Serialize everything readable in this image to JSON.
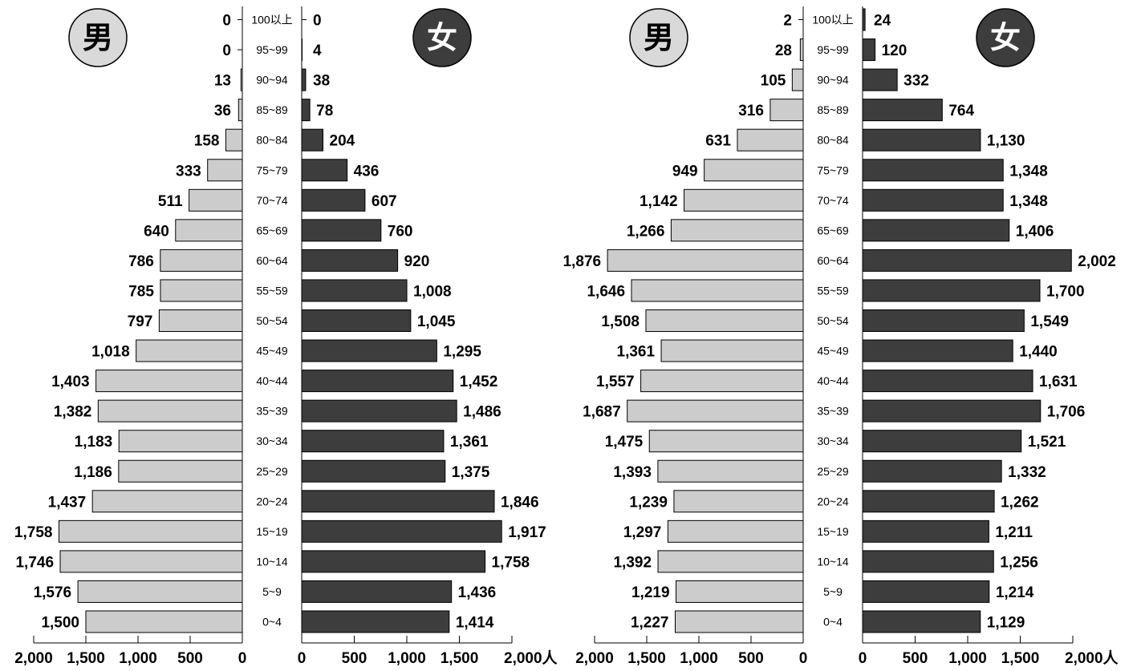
{
  "chart_data": [
    {
      "type": "bar",
      "orientation": "horizontal-pyramid",
      "categories": [
        "100以上",
        "95~99",
        "90~94",
        "85~89",
        "80~84",
        "75~79",
        "70~74",
        "65~69",
        "60~64",
        "55~59",
        "50~54",
        "45~49",
        "40~44",
        "35~39",
        "30~34",
        "25~29",
        "20~24",
        "15~19",
        "10~14",
        "5~9",
        "0~4"
      ],
      "series": [
        {
          "name": "男",
          "values": [
            0,
            0,
            13,
            36,
            158,
            333,
            511,
            640,
            786,
            785,
            797,
            1018,
            1403,
            1382,
            1183,
            1186,
            1437,
            1758,
            1746,
            1576,
            1500
          ],
          "color": "#cccccc"
        },
        {
          "name": "女",
          "values": [
            0,
            4,
            38,
            78,
            204,
            436,
            607,
            760,
            920,
            1008,
            1045,
            1295,
            1452,
            1486,
            1361,
            1375,
            1846,
            1917,
            1758,
            1436,
            1414
          ],
          "color": "#3d3d3d"
        }
      ],
      "xlim": [
        0,
        2000
      ],
      "x_ticks": [
        "2,000",
        "1,500",
        "1,000",
        "500",
        "0"
      ],
      "x_ticks_right": [
        "0",
        "500",
        "1,000",
        "1,500",
        "2,000人"
      ],
      "grid": false
    },
    {
      "type": "bar",
      "orientation": "horizontal-pyramid",
      "categories": [
        "100以上",
        "95~99",
        "90~94",
        "85~89",
        "80~84",
        "75~79",
        "70~74",
        "65~69",
        "60~64",
        "55~59",
        "50~54",
        "45~49",
        "40~44",
        "35~39",
        "30~34",
        "25~29",
        "20~24",
        "15~19",
        "10~14",
        "5~9",
        "0~4"
      ],
      "series": [
        {
          "name": "男",
          "values": [
            2,
            28,
            105,
            316,
            631,
            949,
            1142,
            1266,
            1876,
            1646,
            1508,
            1361,
            1557,
            1687,
            1475,
            1393,
            1239,
            1297,
            1392,
            1219,
            1227
          ],
          "color": "#cccccc"
        },
        {
          "name": "女",
          "values": [
            24,
            120,
            332,
            764,
            1130,
            1348,
            1348,
            1406,
            2002,
            1700,
            1549,
            1440,
            1631,
            1706,
            1521,
            1332,
            1262,
            1211,
            1256,
            1214,
            1129
          ],
          "color": "#3d3d3d"
        }
      ],
      "xlim": [
        0,
        2000
      ],
      "x_ticks": [
        "2,000",
        "1,500",
        "1,000",
        "500",
        "0"
      ],
      "x_ticks_right": [
        "0",
        "500",
        "1,000",
        "1,500",
        "2,000人"
      ],
      "grid": false
    }
  ],
  "badges": {
    "male": "男",
    "female": "女"
  },
  "colors": {
    "male_bar": "#cccccc",
    "female_bar": "#3d3d3d",
    "male_badge": "#d9d9d9",
    "female_badge": "#3d3d3d",
    "stroke": "#000000"
  }
}
